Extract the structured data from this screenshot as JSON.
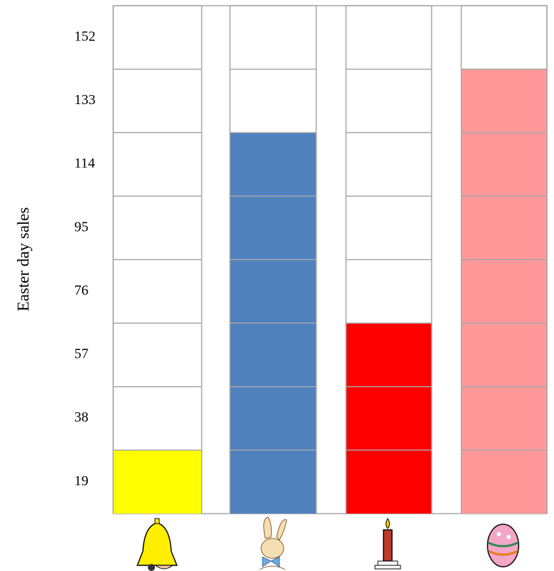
{
  "chart_data": {
    "type": "bar",
    "y_label": "Easter day sales",
    "categories": [
      null,
      null,
      null,
      null
    ],
    "values": [
      19,
      114,
      57,
      133
    ],
    "colors": [
      "#ffff00",
      "#4f81bd",
      "#ff0000",
      "#ff9999"
    ],
    "ylim": [
      0,
      152
    ],
    "yticks": [
      19,
      38,
      57,
      76,
      95,
      114,
      133,
      152
    ],
    "grid": true
  }
}
